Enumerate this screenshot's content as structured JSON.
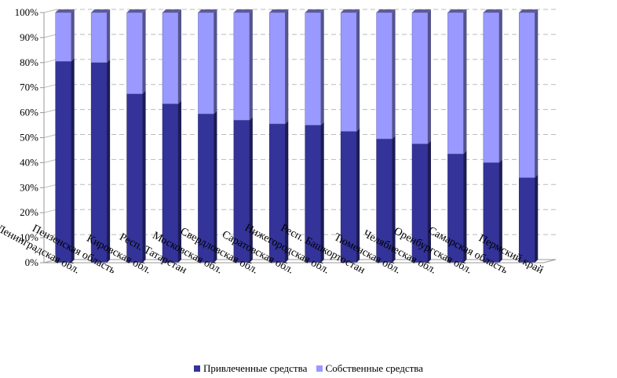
{
  "chart_data": {
    "type": "bar",
    "stacked": true,
    "percent": true,
    "categories": [
      "Ленинградская обл.",
      "Пензенская область",
      "Кировская обл.",
      "Респ. Татарстан",
      "Московская обл.",
      "Свердловская обл.",
      "Саратовская обл.",
      "Нижегородская обл.",
      "Респ. Башкортостан",
      "Тюменская обл.",
      "Челябиеская обл.",
      "Оренбургская обл.",
      "Самарская область",
      "Пермский край"
    ],
    "series": [
      {
        "name": "Привлеченные средства",
        "color": "#333399",
        "values": [
          80.5,
          80,
          67.5,
          63.5,
          59.5,
          57,
          55.5,
          55,
          52.5,
          49.5,
          47.5,
          43.5,
          40,
          34
        ]
      },
      {
        "name": "Собственные средства",
        "color": "#9999FF",
        "values": [
          19.5,
          20,
          32.5,
          36.5,
          40.5,
          43,
          44.5,
          45,
          47.5,
          50.5,
          52.5,
          56.5,
          60,
          66
        ]
      }
    ],
    "y_ticks": [
      "0%",
      "10%",
      "20%",
      "30%",
      "40%",
      "50%",
      "60%",
      "70%",
      "80%",
      "90%",
      "100%"
    ],
    "ylim": [
      0,
      100
    ],
    "grid": true,
    "legend_position": "bottom",
    "title": "",
    "xlabel": "",
    "ylabel": ""
  }
}
